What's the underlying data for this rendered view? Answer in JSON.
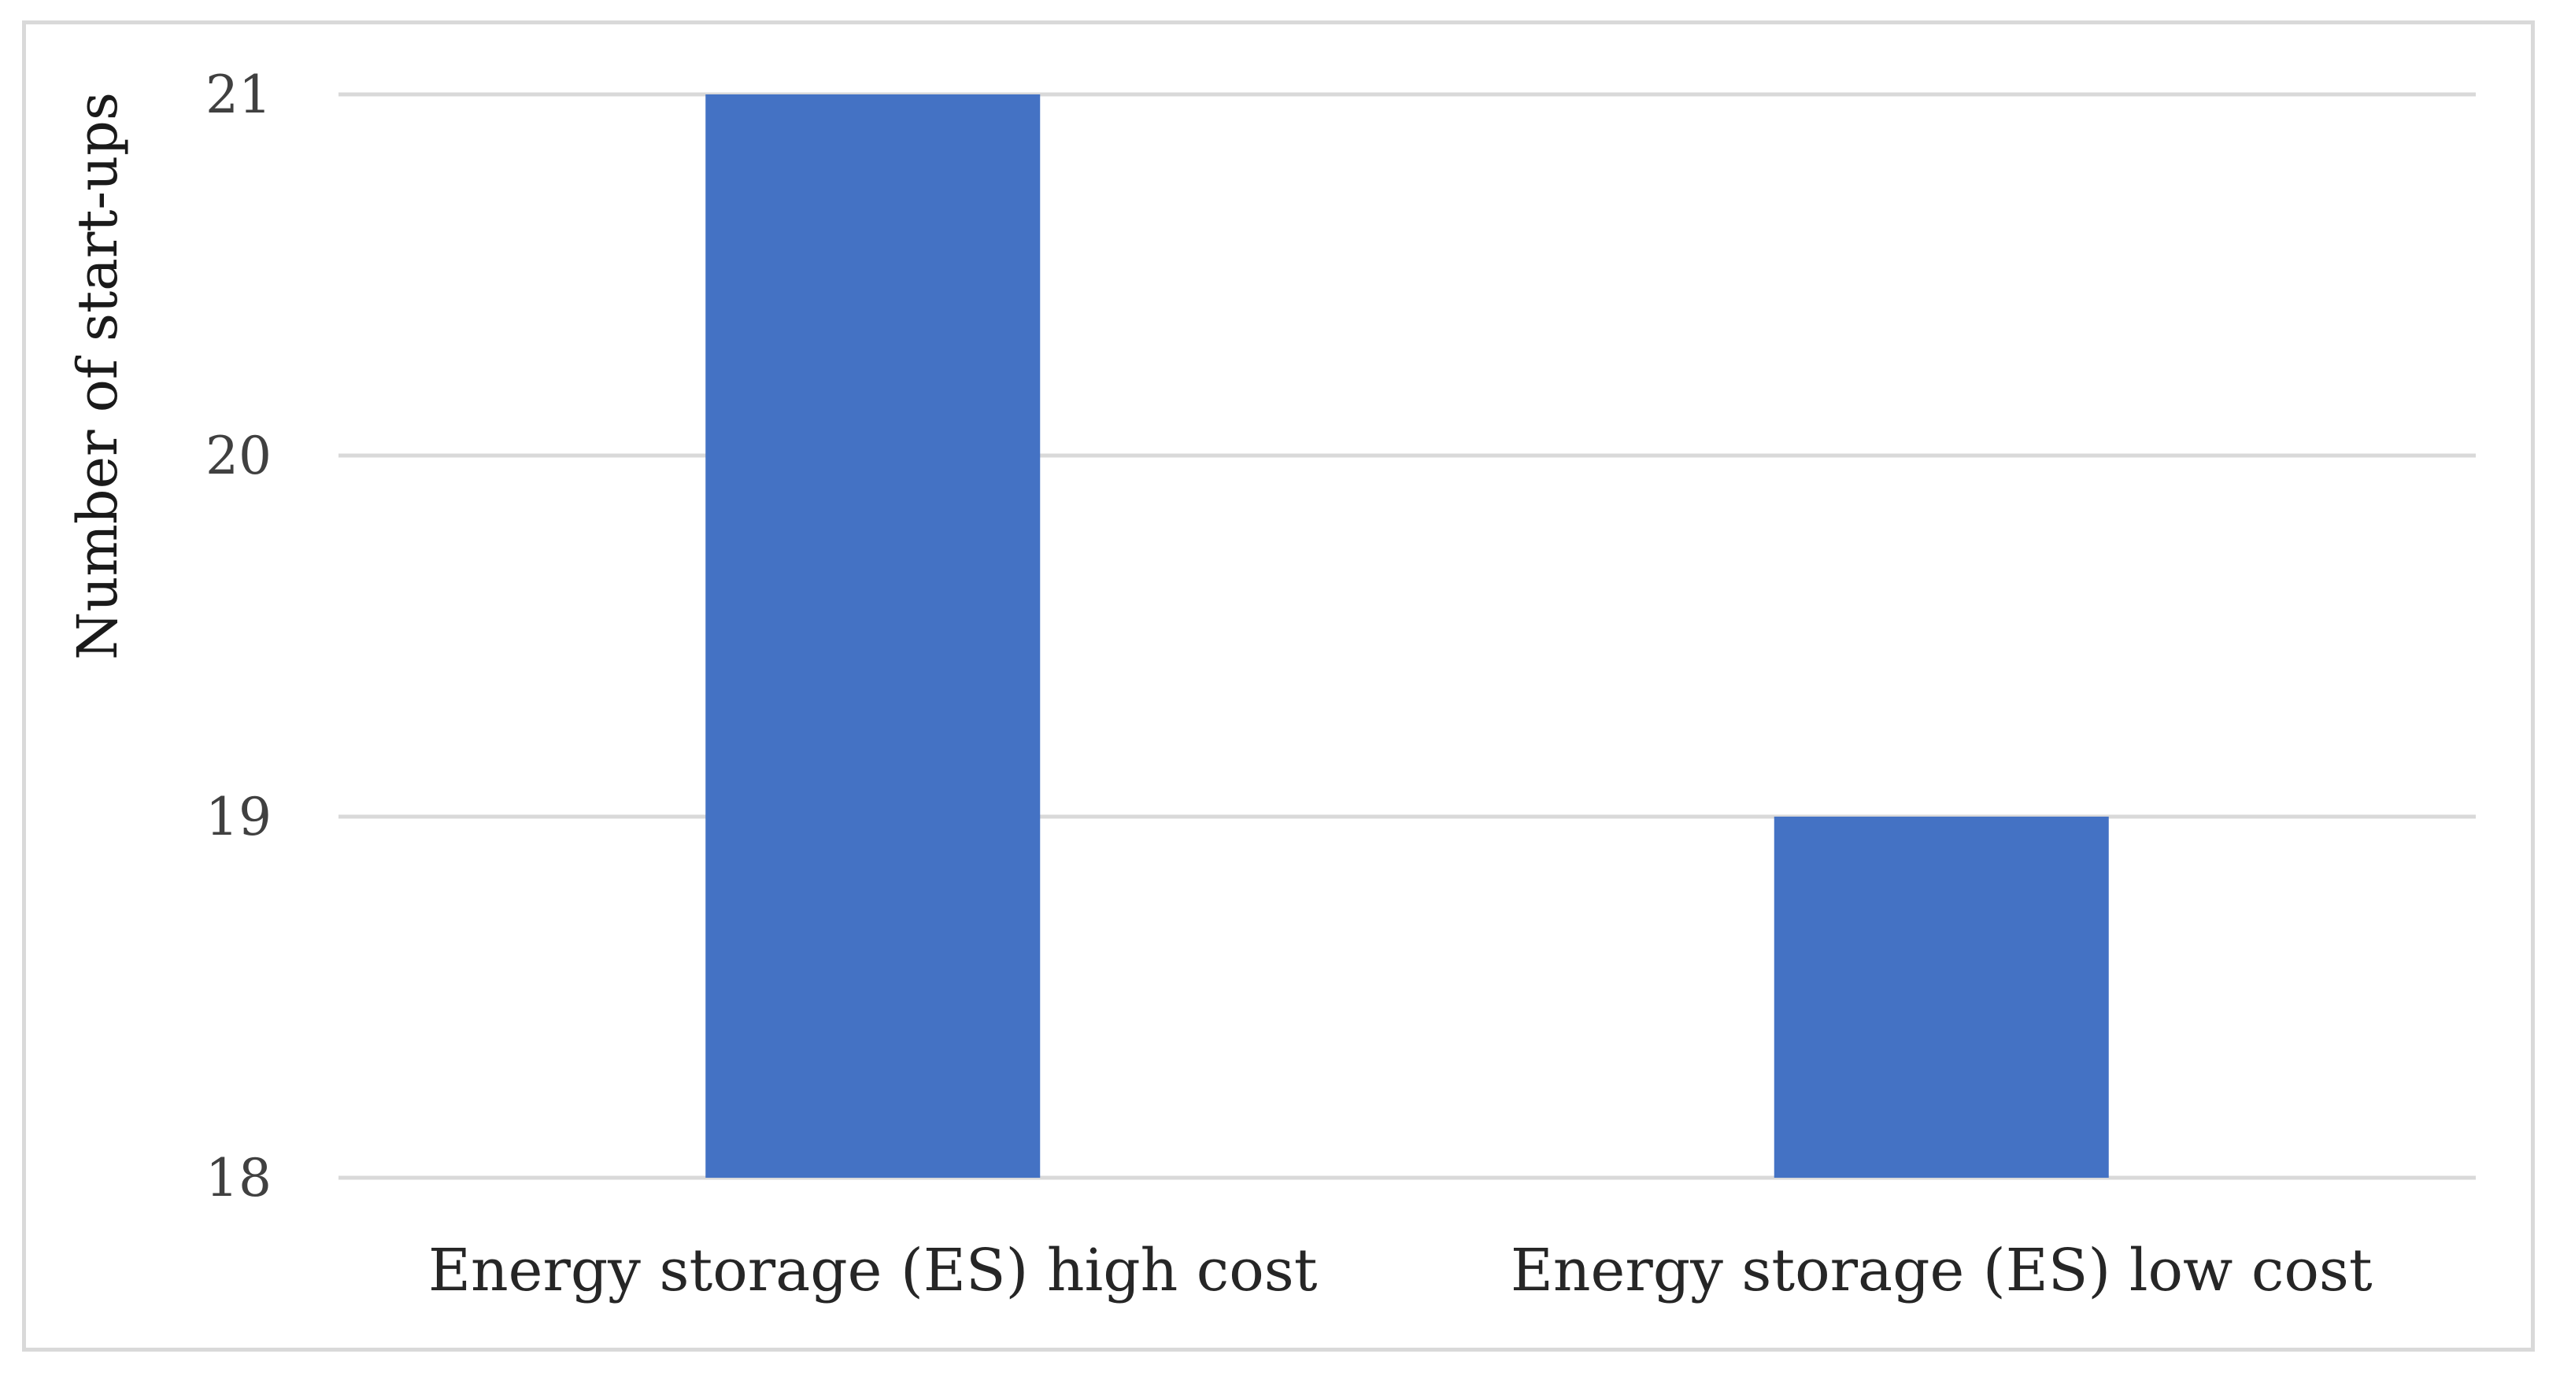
{
  "chart_data": {
    "type": "bar",
    "title": "",
    "xlabel": "",
    "ylabel": "Number of start-ups",
    "categories": [
      "Energy storage (ES) high cost",
      "Energy storage (ES) low cost"
    ],
    "series": [
      {
        "values": [
          21,
          19
        ],
        "color": "#4472c4"
      }
    ],
    "ylim": [
      18,
      21
    ],
    "yticks": [
      18,
      19,
      20,
      21
    ],
    "grid": true,
    "legend": "none",
    "colors": {
      "bar": "#4472c4",
      "grid": "#d9d9d9",
      "frame": "#d9d9d9"
    }
  }
}
